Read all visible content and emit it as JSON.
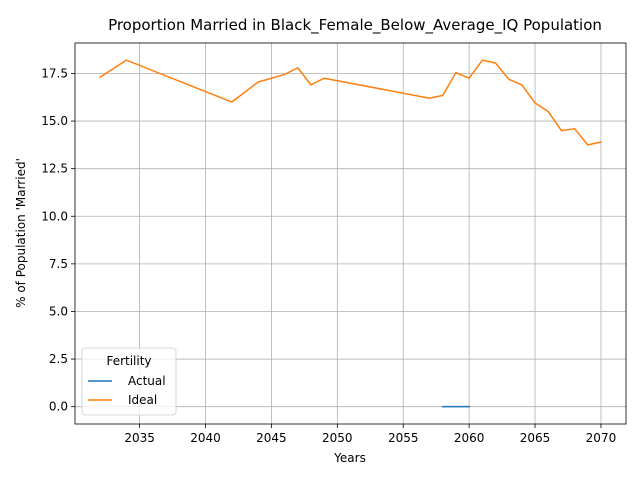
{
  "chart_data": {
    "type": "line",
    "title": "Proportion Married in Black_Female_Below_Average_IQ Population",
    "xlabel": "Years",
    "ylabel": "% of Population 'Married'",
    "xlim": [
      2030.1,
      2071.9
    ],
    "ylim": [
      -0.91,
      19.1
    ],
    "xticks": [
      2035,
      2040,
      2045,
      2050,
      2055,
      2060,
      2065,
      2070
    ],
    "yticks": [
      0.0,
      2.5,
      5.0,
      7.5,
      10.0,
      12.5,
      15.0,
      17.5
    ],
    "ytick_labels": [
      "0.0",
      "2.5",
      "5.0",
      "7.5",
      "10.0",
      "12.5",
      "15.0",
      "17.5"
    ],
    "grid": true,
    "legend": {
      "title": "Fertility",
      "placement": "lower-left"
    },
    "series": [
      {
        "name": "Actual",
        "color": "#1f77b4",
        "x": [
          2058,
          2060
        ],
        "y": [
          0.0,
          0.0
        ]
      },
      {
        "name": "Ideal",
        "color": "#ff7f0e",
        "x": [
          2032,
          2034,
          2042,
          2044,
          2046,
          2047,
          2048,
          2049,
          2057,
          2058,
          2059,
          2060,
          2061,
          2062,
          2063,
          2064,
          2065,
          2066,
          2067,
          2068,
          2069,
          2070
        ],
        "y": [
          17.3,
          18.2,
          16.0,
          17.05,
          17.45,
          17.8,
          16.9,
          17.25,
          16.2,
          16.35,
          17.55,
          17.25,
          18.2,
          18.05,
          17.2,
          16.9,
          15.95,
          15.5,
          14.5,
          14.6,
          13.75,
          13.9
        ]
      }
    ]
  }
}
